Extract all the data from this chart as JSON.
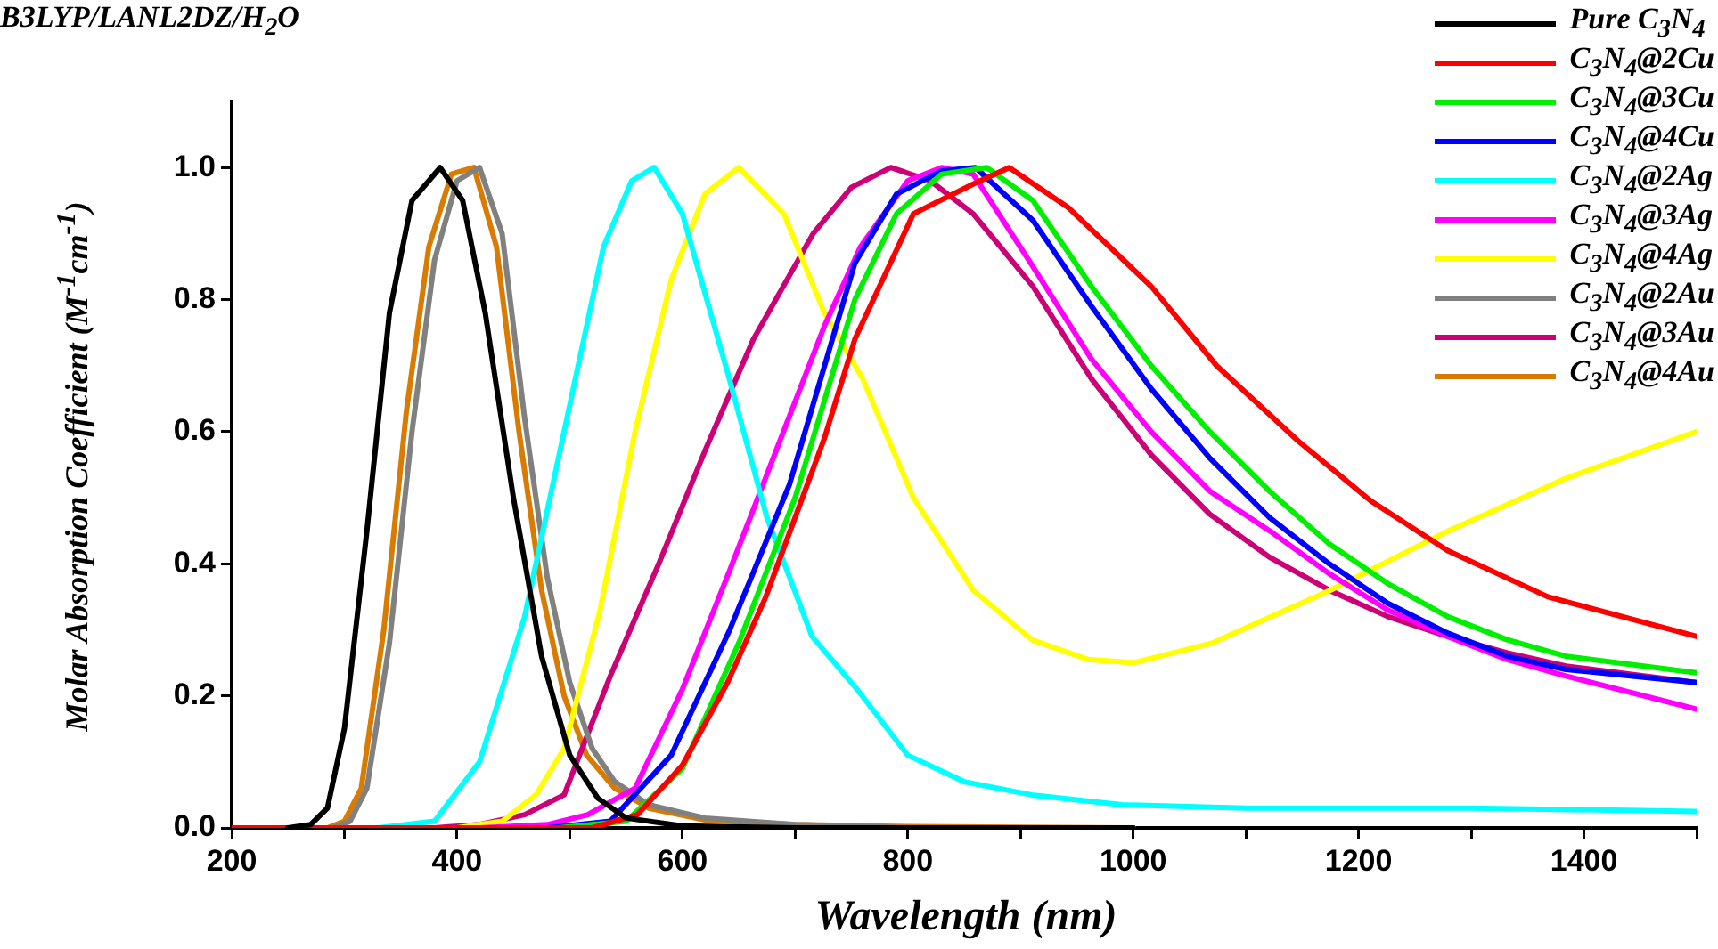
{
  "chart_data": {
    "type": "line",
    "xlabel": "Wavelength (nm)",
    "ylabel": "Molar Absorption Coefficient (M$^{-1}$cm$^{-1}$)",
    "annotations": [
      "B3LYP/LANL2DZ/H$_{2}$O"
    ],
    "xlim": [
      200,
      1500
    ],
    "xticks": [
      200,
      {
        "value": 300,
        "label": null
      },
      400,
      {
        "value": 500,
        "label": null
      },
      600,
      {
        "value": 700,
        "label": null
      },
      800,
      {
        "value": 900,
        "label": null
      },
      1000,
      {
        "value": 1100,
        "label": null
      },
      1200,
      {
        "value": 1300,
        "label": null
      },
      1400,
      {
        "value": 1500,
        "label": null
      }
    ],
    "ylim": [
      0,
      1.1
    ],
    "yticks": [
      {
        "value": 0,
        "label": "0.0"
      },
      0.2,
      0.4,
      0.6,
      0.8,
      {
        "value": 1,
        "label": "1.0"
      }
    ],
    "grid": false,
    "legend": "top right",
    "marker": "none",
    "line_style": "solid",
    "series": [
      {
        "name": "Pure C$_{3}$N$_{4}$",
        "color": "#000000",
        "x": [
          250,
          270,
          285,
          300,
          320,
          340,
          360,
          385,
          405,
          425,
          450,
          475,
          500,
          525,
          550,
          600,
          700,
          1000
        ],
        "values": [
          0,
          0.005,
          0.03,
          0.15,
          0.45,
          0.78,
          0.95,
          1.0,
          0.95,
          0.78,
          0.5,
          0.26,
          0.11,
          0.045,
          0.015,
          0.003,
          0,
          0
        ]
      },
      {
        "name": "C$_{3}$N$_{4}$@2Cu",
        "color": "#ff0000",
        "x": [
          200,
          520,
          560,
          600,
          640,
          674,
          726,
          753,
          805,
          858,
          890,
          942,
          1016,
          1074,
          1147,
          1211,
          1279,
          1368,
          1500
        ],
        "values": [
          0,
          0,
          0.02,
          0.095,
          0.22,
          0.35,
          0.59,
          0.74,
          0.93,
          0.975,
          1.0,
          0.94,
          0.82,
          0.7,
          0.585,
          0.495,
          0.42,
          0.35,
          0.29
        ]
      },
      {
        "name": "C$_{3}$N$_{4}$@3Cu",
        "color": "#00ee00",
        "x": [
          200,
          490,
          550,
          600,
          650,
          700,
          753,
          790,
          830,
          870,
          911,
          963,
          1016,
          1068,
          1121,
          1174,
          1226,
          1279,
          1332,
          1384,
          1500
        ],
        "values": [
          0,
          0,
          0.01,
          0.09,
          0.28,
          0.5,
          0.8,
          0.93,
          0.99,
          1.0,
          0.95,
          0.82,
          0.7,
          0.6,
          0.51,
          0.43,
          0.37,
          0.32,
          0.285,
          0.26,
          0.235
        ]
      },
      {
        "name": "C$_{3}$N$_{4}$@4Cu",
        "color": "#0000ff",
        "x": [
          200,
          480,
          536,
          590,
          642,
          695,
          753,
          790,
          830,
          860,
          911,
          963,
          1016,
          1068,
          1121,
          1174,
          1226,
          1279,
          1332,
          1384,
          1500
        ],
        "values": [
          0,
          0,
          0.01,
          0.11,
          0.3,
          0.52,
          0.855,
          0.96,
          0.995,
          1.0,
          0.92,
          0.79,
          0.665,
          0.56,
          0.47,
          0.4,
          0.34,
          0.295,
          0.26,
          0.24,
          0.22
        ]
      },
      {
        "name": "C$_{3}$N$_{4}$@2Ag",
        "color": "#00ffff",
        "x": [
          200,
          330,
          380,
          420,
          460,
          495,
          530,
          555,
          575,
          600,
          640,
          675,
          715,
          755,
          800,
          850,
          910,
          990,
          1100,
          1300,
          1500
        ],
        "values": [
          0,
          0,
          0.01,
          0.1,
          0.32,
          0.6,
          0.88,
          0.98,
          1.0,
          0.93,
          0.69,
          0.47,
          0.29,
          0.21,
          0.11,
          0.07,
          0.05,
          0.035,
          0.03,
          0.03,
          0.025
        ]
      },
      {
        "name": "C$_{3}$N$_{4}$@3Ag",
        "color": "#ff00ff",
        "x": [
          200,
          420,
          480,
          516,
          558,
          600,
          642,
          684,
          726,
          758,
          800,
          830,
          858,
          911,
          963,
          1016,
          1068,
          1121,
          1174,
          1226,
          1279,
          1332,
          1384,
          1500
        ],
        "values": [
          0,
          0,
          0.005,
          0.02,
          0.06,
          0.21,
          0.39,
          0.575,
          0.76,
          0.88,
          0.98,
          1.0,
          0.99,
          0.85,
          0.71,
          0.6,
          0.51,
          0.45,
          0.385,
          0.33,
          0.29,
          0.255,
          0.23,
          0.18
        ]
      },
      {
        "name": "C$_{3}$N$_{4}$@4Ag",
        "color": "#ffff00",
        "x": [
          200,
          400,
          440,
          470,
          495,
          527,
          558,
          590,
          620,
          650,
          690,
          726,
          760,
          805,
          858,
          910,
          960,
          1000,
          1070,
          1175,
          1280,
          1385,
          1500
        ],
        "values": [
          0,
          0,
          0.01,
          0.05,
          0.12,
          0.33,
          0.6,
          0.83,
          0.96,
          1.0,
          0.93,
          0.78,
          0.68,
          0.5,
          0.36,
          0.285,
          0.255,
          0.25,
          0.28,
          0.36,
          0.45,
          0.53,
          0.6
        ]
      },
      {
        "name": "C$_{3}$N$_{4}$@2Au",
        "color": "#808080",
        "x": [
          200,
          290,
          305,
          320,
          340,
          360,
          380,
          400,
          420,
          440,
          460,
          480,
          500,
          520,
          540,
          570,
          620,
          700,
          800,
          1000
        ],
        "values": [
          0,
          0,
          0.01,
          0.06,
          0.28,
          0.6,
          0.86,
          0.98,
          1.0,
          0.9,
          0.62,
          0.38,
          0.22,
          0.12,
          0.07,
          0.035,
          0.015,
          0.005,
          0,
          0
        ]
      },
      {
        "name": "C$_{3}$N$_{4}$@3Au",
        "color": "#cc0077",
        "x": [
          200,
          380,
          420,
          460,
          495,
          536,
          579,
          621,
          663,
          716,
          750,
          785,
          820,
          858,
          911,
          963,
          1016,
          1068,
          1121,
          1174,
          1226,
          1279,
          1332,
          1384,
          1500
        ],
        "values": [
          0,
          0,
          0.005,
          0.02,
          0.05,
          0.23,
          0.4,
          0.575,
          0.74,
          0.9,
          0.97,
          1.0,
          0.98,
          0.93,
          0.82,
          0.68,
          0.565,
          0.475,
          0.41,
          0.36,
          0.32,
          0.29,
          0.265,
          0.245,
          0.22
        ]
      },
      {
        "name": "C$_{3}$N$_{4}$@4Au",
        "color": "#d97b00",
        "x": [
          200,
          285,
          300,
          315,
          335,
          355,
          375,
          395,
          415,
          435,
          455,
          475,
          495,
          515,
          540,
          570,
          620,
          700,
          800,
          1000
        ],
        "values": [
          0,
          0,
          0.01,
          0.06,
          0.3,
          0.63,
          0.88,
          0.99,
          1.0,
          0.88,
          0.6,
          0.36,
          0.2,
          0.11,
          0.06,
          0.03,
          0.012,
          0.005,
          0.002,
          0
        ]
      }
    ]
  }
}
